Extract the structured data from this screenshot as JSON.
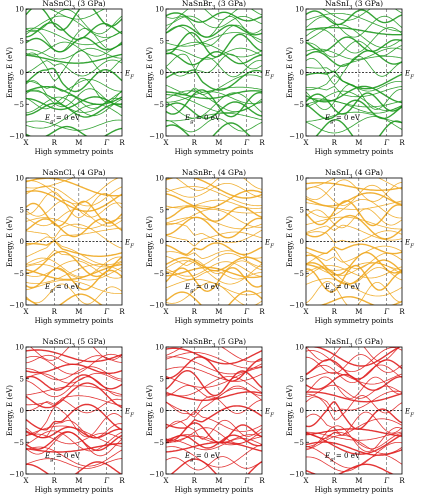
{
  "figure": {
    "ylabel": "Energy, E (eV)",
    "xlabel": "High symmetry points",
    "fermi_label": "E_F",
    "gap_label": "E_g = 0 eV"
  },
  "chart_data": [
    {
      "type": "line",
      "title": "NaSnCl3 (3 GPa)",
      "compound": "NaSnCl3",
      "pressure_GPa": 3,
      "x_ticks": [
        "X",
        "R",
        "M",
        "Γ",
        "R"
      ],
      "ylim": [
        -10,
        10
      ],
      "y_ticks": [
        -10,
        -5,
        0,
        5,
        10
      ],
      "band_gap_eV": 0,
      "color": "#1f9a1f"
    },
    {
      "type": "line",
      "title": "NaSnBr3 (3 GPa)",
      "compound": "NaSnBr3",
      "pressure_GPa": 3,
      "x_ticks": [
        "X",
        "R",
        "M",
        "Γ",
        "R"
      ],
      "ylim": [
        -10,
        10
      ],
      "y_ticks": [
        -10,
        -5,
        0,
        5,
        10
      ],
      "band_gap_eV": 0,
      "color": "#1f9a1f"
    },
    {
      "type": "line",
      "title": "NaSnI3 (3 GPa)",
      "compound": "NaSnI3",
      "pressure_GPa": 3,
      "x_ticks": [
        "X",
        "R",
        "M",
        "Γ",
        "R"
      ],
      "ylim": [
        -10,
        10
      ],
      "y_ticks": [
        -10,
        -5,
        0,
        5,
        10
      ],
      "band_gap_eV": 0,
      "color": "#1f9a1f"
    },
    {
      "type": "line",
      "title": "NaSnCl3 (4 GPa)",
      "compound": "NaSnCl3",
      "pressure_GPa": 4,
      "x_ticks": [
        "X",
        "R",
        "M",
        "Γ",
        "R"
      ],
      "ylim": [
        -10,
        10
      ],
      "y_ticks": [
        -10,
        -5,
        0,
        5,
        10
      ],
      "band_gap_eV": 0,
      "color": "#f0a820"
    },
    {
      "type": "line",
      "title": "NaSnBr3 (4 GPa)",
      "compound": "NaSnBr3",
      "pressure_GPa": 4,
      "x_ticks": [
        "X",
        "R",
        "M",
        "Γ",
        "R"
      ],
      "ylim": [
        -10,
        10
      ],
      "y_ticks": [
        -10,
        -5,
        0,
        5,
        10
      ],
      "band_gap_eV": 0,
      "color": "#f0a820"
    },
    {
      "type": "line",
      "title": "NaSnI3 (4 GPa)",
      "compound": "NaSnI3",
      "pressure_GPa": 4,
      "x_ticks": [
        "X",
        "R",
        "M",
        "Γ",
        "R"
      ],
      "ylim": [
        -10,
        10
      ],
      "y_ticks": [
        -10,
        -5,
        0,
        5,
        10
      ],
      "band_gap_eV": 0,
      "color": "#f0a820"
    },
    {
      "type": "line",
      "title": "NaSnCl3 (5 GPa)",
      "compound": "NaSnCl3",
      "pressure_GPa": 5,
      "x_ticks": [
        "X",
        "R",
        "M",
        "Γ",
        "R"
      ],
      "ylim": [
        -10,
        10
      ],
      "y_ticks": [
        -10,
        -5,
        0,
        5,
        10
      ],
      "band_gap_eV": 0,
      "color": "#e02020"
    },
    {
      "type": "line",
      "title": "NaSnBr3 (5 GPa)",
      "compound": "NaSnBr3",
      "pressure_GPa": 5,
      "x_ticks": [
        "X",
        "R",
        "M",
        "Γ",
        "R"
      ],
      "ylim": [
        -10,
        10
      ],
      "y_ticks": [
        -10,
        -5,
        0,
        5,
        10
      ],
      "band_gap_eV": 0,
      "color": "#e02020"
    },
    {
      "type": "line",
      "title": "NaSnI3 (5 GPa)",
      "compound": "NaSnI3",
      "pressure_GPa": 5,
      "x_ticks": [
        "X",
        "R",
        "M",
        "Γ",
        "R"
      ],
      "ylim": [
        -10,
        10
      ],
      "y_ticks": [
        -10,
        -5,
        0,
        5,
        10
      ],
      "band_gap_eV": 0,
      "color": "#e02020"
    }
  ]
}
